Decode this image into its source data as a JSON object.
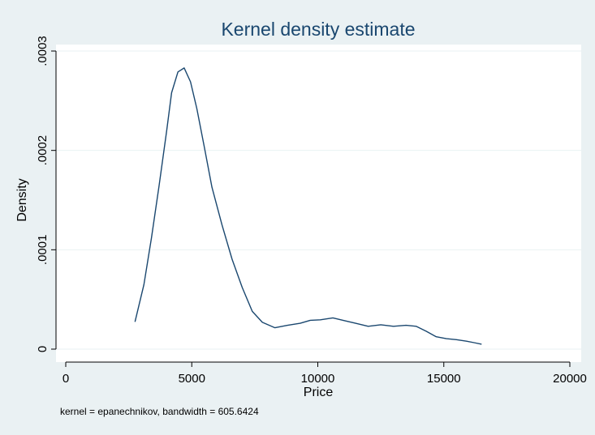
{
  "chart_data": {
    "type": "line",
    "title": "Kernel density estimate",
    "xlabel": "Price",
    "ylabel": "Density",
    "note": "kernel = epanechnikov, bandwidth = 605.6424",
    "xlim": [
      0,
      20000
    ],
    "ylim": [
      0,
      0.0003
    ],
    "x_ticks": [
      0,
      5000,
      10000,
      15000,
      20000
    ],
    "x_tick_labels": [
      "0",
      "5000",
      "10000",
      "15000",
      "20000"
    ],
    "y_ticks": [
      0,
      0.0001,
      0.0002,
      0.0003
    ],
    "y_tick_labels": [
      "0",
      ".0001",
      ".0002",
      ".0003"
    ],
    "grid": true,
    "colors": {
      "line": "#1a476f",
      "title": "#1a476f",
      "plot_background": "#ffffff",
      "outer_background": "#eaf1f3",
      "grid": "#eaf2f3"
    },
    "series": [
      {
        "x": [
          2748,
          3100,
          3400,
          3700,
          4000,
          4200,
          4450,
          4700,
          4950,
          5200,
          5500,
          5800,
          6200,
          6600,
          7000,
          7400,
          7800,
          8300,
          8800,
          9300,
          9700,
          10100,
          10600,
          11000,
          11500,
          12000,
          12500,
          13000,
          13500,
          13900,
          14300,
          14700,
          15100,
          15500,
          15900,
          16200,
          16500
        ],
        "y": [
          2.75e-05,
          6.5e-05,
          0.000112,
          0.000164,
          0.000219,
          0.000258,
          0.000279,
          0.000283,
          0.000269,
          0.000242,
          0.000203,
          0.000163,
          0.000125,
          9.05e-05,
          6.2e-05,
          3.8e-05,
          2.7e-05,
          2.15e-05,
          2.4e-05,
          2.6e-05,
          2.9e-05,
          2.95e-05,
          3.15e-05,
          2.9e-05,
          2.6e-05,
          2.3e-05,
          2.45e-05,
          2.3e-05,
          2.4e-05,
          2.3e-05,
          1.8e-05,
          1.25e-05,
          1.05e-05,
          9.5e-06,
          8e-06,
          6.5e-06,
          5e-06
        ]
      }
    ]
  }
}
